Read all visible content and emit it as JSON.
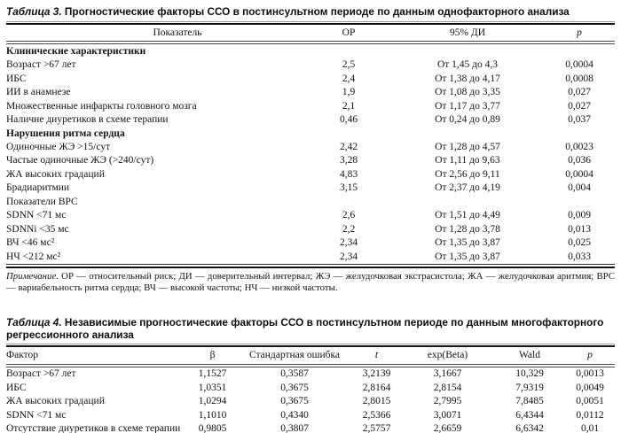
{
  "table3": {
    "title_num": "Таблица 3.",
    "title_text": " Прогностические факторы ССО в постинсультном периоде по данным однофакторного анализа",
    "columns": [
      "Показатель",
      "ОР",
      "95% ДИ",
      "p"
    ],
    "rows": [
      {
        "type": "section",
        "bold": true,
        "label": "Клинические характеристики"
      },
      {
        "type": "data",
        "cells": [
          "Возраст >67 лет",
          "2,5",
          "От 1,45 до 4,3",
          "0,0004"
        ]
      },
      {
        "type": "data",
        "cells": [
          "ИБС",
          "2,4",
          "От 1,38 до 4,17",
          "0,0008"
        ]
      },
      {
        "type": "data",
        "cells": [
          "ИИ в анамнезе",
          "1,9",
          "От 1,08 до 3,35",
          "0,027"
        ]
      },
      {
        "type": "data",
        "cells": [
          "Множественные инфаркты головного мозга",
          "2,1",
          "От 1,17 до 3,77",
          "0,027"
        ]
      },
      {
        "type": "data",
        "cells": [
          "Наличие диуретиков в схеме терапии",
          "0,46",
          "От 0,24 до 0,89",
          "0,037"
        ]
      },
      {
        "type": "section",
        "bold": true,
        "label": "Нарушения ритма сердца"
      },
      {
        "type": "data",
        "cells": [
          "Одиночные ЖЭ >15/сут",
          "2,42",
          "От 1,28 до 4,57",
          "0,0023"
        ]
      },
      {
        "type": "data",
        "cells": [
          "Частые одиночные ЖЭ (>240/сут)",
          "3,28",
          "От 1,11 до 9,63",
          "0,036"
        ]
      },
      {
        "type": "data",
        "cells": [
          "ЖА высоких градаций",
          "4,83",
          "От 2,56 до 9,11",
          "0,0004"
        ]
      },
      {
        "type": "data",
        "cells": [
          "Брадиаритмии",
          "3,15",
          "От 2,37 до 4,19",
          "0,004"
        ]
      },
      {
        "type": "section",
        "bold": false,
        "label": "Показатели ВРС"
      },
      {
        "type": "data",
        "cells": [
          "SDNN <71 мс",
          "2,6",
          "От 1,51 до 4,49",
          "0,009"
        ]
      },
      {
        "type": "data",
        "cells": [
          "SDNNi <35 мс",
          "2,2",
          "От 1,28 до 3,78",
          "0,013"
        ]
      },
      {
        "type": "data",
        "cells": [
          "ВЧ <46 мс²",
          "2,34",
          "От 1,35 до 3,87",
          "0,025"
        ]
      },
      {
        "type": "data",
        "cells": [
          "НЧ <212 мс²",
          "2,34",
          "От 1,35 до 3,87",
          "0,033"
        ]
      }
    ],
    "footnote_label": "Примечание.",
    "footnote_text": " ОР — относительный риск; ДИ — доверительный интервал; ЖЭ — желудочковая экстрасистола; ЖА — желудочковая аритмия; ВРС — вариабельность ритма сердца; ВЧ — высокой частоты; НЧ — низкой частоты."
  },
  "table4": {
    "title_num": "Таблица 4.",
    "title_text": " Независимые прогностические факторы ССО в постинсультном периоде по данным многофакторного регрессионного анализа",
    "columns": [
      "Фактор",
      "β",
      "Стандартная ошибка",
      "t",
      "exp(Beta)",
      "Wald",
      "p"
    ],
    "rows": [
      {
        "type": "data",
        "cells": [
          "Возраст >67 лет",
          "1,1527",
          "0,3587",
          "3,2139",
          "3,1667",
          "10,329",
          "0,0013"
        ]
      },
      {
        "type": "data",
        "cells": [
          "ИБС",
          "1,0351",
          "0,3675",
          "2,8164",
          "2,8154",
          "7,9319",
          "0,0049"
        ]
      },
      {
        "type": "data",
        "cells": [
          "ЖА высоких градаций",
          "1,0294",
          "0,3675",
          "2,8015",
          "2,7995",
          "7,8485",
          "0,0051"
        ]
      },
      {
        "type": "data",
        "cells": [
          "SDNN <71 мс",
          "1,1010",
          "0,4340",
          "2,5366",
          "3,0071",
          "6,4344",
          "0,0112"
        ]
      },
      {
        "type": "data",
        "cells": [
          "Отсутствие диуретиков в схеме терапии",
          "0,9805",
          "0,3807",
          "2,5757",
          "2,6659",
          "6,6342",
          "0,01"
        ]
      }
    ]
  }
}
